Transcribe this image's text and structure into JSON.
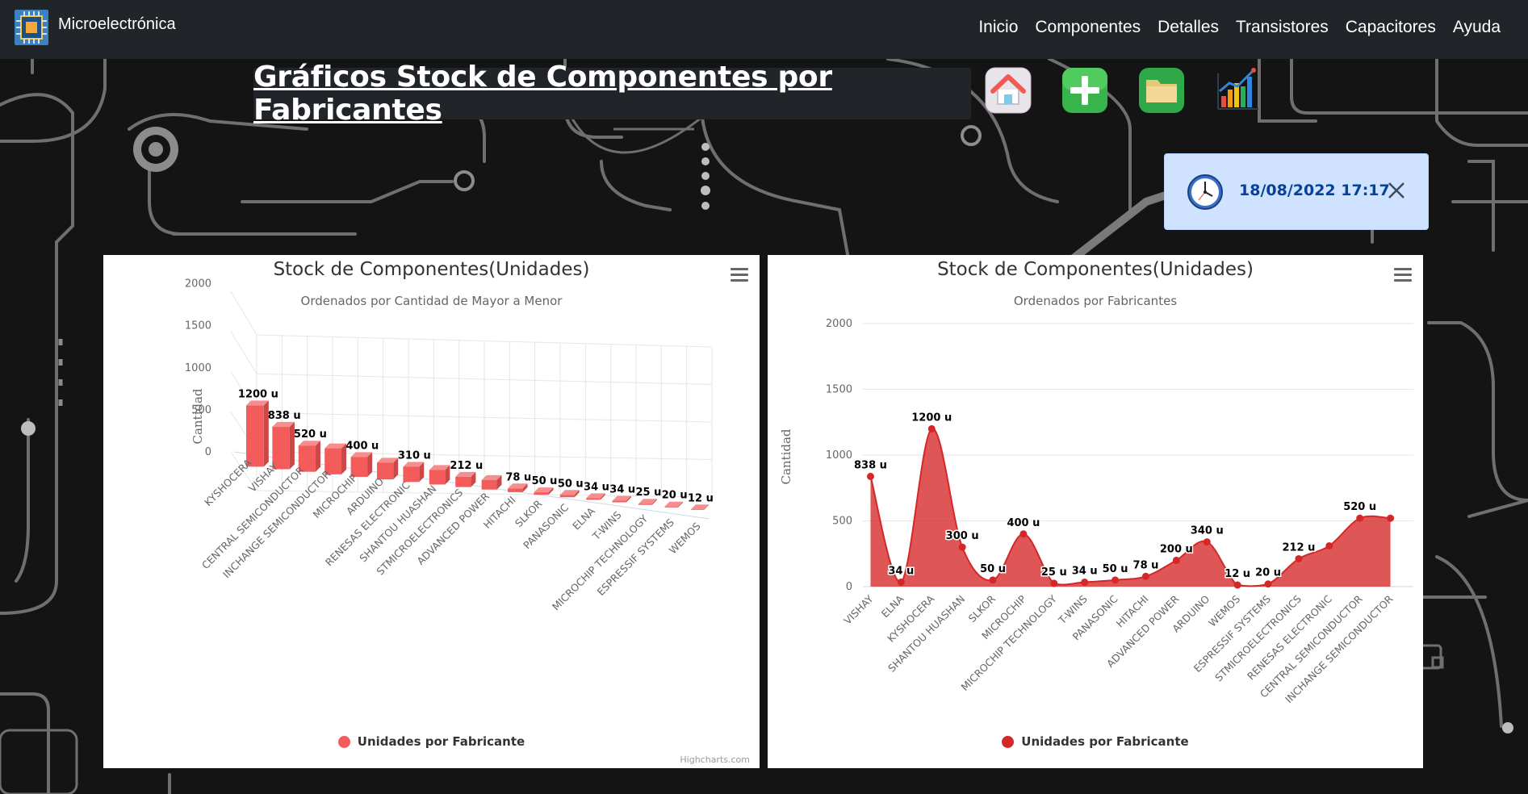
{
  "navbar": {
    "brand": "Microelectrónica",
    "links": [
      "Inicio",
      "Componentes",
      "Detalles",
      "Transistores",
      "Capacitores",
      "Ayuda"
    ]
  },
  "page": {
    "title": "Gráficos Stock de Componentes por Fabricantes"
  },
  "toolbar": {
    "icons": [
      "home-icon",
      "add-icon",
      "folder-icon",
      "chart-icon"
    ]
  },
  "alert": {
    "datetime": "18/08/2022 17:17",
    "icon": "clock-icon"
  },
  "charts": {
    "credits": "Highcharts.com"
  },
  "chart_data": [
    {
      "type": "bar",
      "title": "Stock de Componentes(Unidades)",
      "subtitle": "Ordenados por Cantidad de Mayor a Menor",
      "ylabel": "Cantidad",
      "xlabel": "",
      "ylim": [
        0,
        2000
      ],
      "yticks": [
        "0",
        "500",
        "1000",
        "1500",
        "2000"
      ],
      "is3d": true,
      "color": "#f45b5b",
      "categories": [
        "KYSHOCERA",
        "VISHAY",
        "CENTRAL SEMICONDUCTOR",
        "INCHANGE SEMICONDUCTOR",
        "MICROCHIP",
        "ARDUINO",
        "RENESAS ELECTRONIC",
        "SHANTOU HUASHAN",
        "STMICROELECTRONICS",
        "ADVANCED POWER",
        "HITACHI",
        "SLKOR",
        "PANASONIC",
        "ELNA",
        "T-WINS",
        "MICROCHIP TECHNOLOGY",
        "ESPRESSIF SYSTEMS",
        "WEMOS"
      ],
      "series": [
        {
          "name": "Unidades por Fabricante",
          "values": [
            1200,
            838,
            520,
            520,
            400,
            340,
            310,
            300,
            212,
            200,
            78,
            50,
            50,
            34,
            34,
            25,
            20,
            12
          ],
          "labels": [
            "1200 u",
            "838 u",
            "520 u",
            "",
            "400 u",
            "",
            "310 u",
            "",
            "212 u",
            "",
            "78 u",
            "50 u",
            "50 u",
            "34 u",
            "34 u",
            "25 u",
            "20 u",
            "12 u"
          ]
        }
      ],
      "legend": "bottom-center",
      "grid": true
    },
    {
      "type": "area",
      "title": "Stock de Componentes(Unidades)",
      "subtitle": "Ordenados por Fabricantes",
      "ylabel": "Cantidad",
      "xlabel": "",
      "ylim": [
        0,
        2000
      ],
      "yticks": [
        "0",
        "500",
        "1000",
        "1500",
        "2000"
      ],
      "color": "#d62728",
      "categories": [
        "VISHAY",
        "ELNA",
        "KYSHOCERA",
        "SHANTOU HUASHAN",
        "SLKOR",
        "MICROCHIP",
        "MICROCHIP TECHNOLOGY",
        "T-WINS",
        "PANASONIC",
        "HITACHI",
        "ADVANCED POWER",
        "ARDUINO",
        "WEMOS",
        "ESPRESSIF SYSTEMS",
        "STMICROELECTRONICS",
        "RENESAS ELECTRONIC",
        "CENTRAL SEMICONDUCTOR",
        "INCHANGE SEMICONDUCTOR"
      ],
      "series": [
        {
          "name": "Unidades por Fabricante",
          "values": [
            838,
            34,
            1200,
            300,
            50,
            400,
            25,
            34,
            50,
            78,
            200,
            340,
            12,
            20,
            212,
            310,
            520,
            520
          ],
          "labels": [
            "838 u",
            "34 u",
            "1200 u",
            "300 u",
            "50 u",
            "400 u",
            "25 u",
            "34 u",
            "50 u",
            "78 u",
            "200 u",
            "340 u",
            "12 u",
            "20 u",
            "212 u",
            "",
            "520 u",
            ""
          ]
        }
      ],
      "legend": "bottom-center",
      "grid": true
    }
  ]
}
